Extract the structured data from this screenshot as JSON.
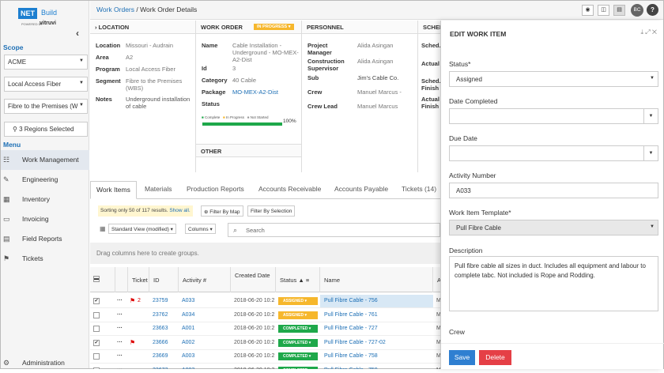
{
  "logo": {
    "net": "NET",
    "build": "Build",
    "powered": "POWERED BY",
    "brand": "vitruvi"
  },
  "sidebar": {
    "scope_heading": "Scope",
    "selects": [
      "ACME",
      "Local Access Fiber",
      "Fibre to the Premises (W"
    ],
    "regions": "3 Regions Selected",
    "menu_heading": "Menu",
    "items": [
      {
        "label": "Work Management",
        "icon": "org-chart-icon"
      },
      {
        "label": "Engineering",
        "icon": "ruler-icon"
      },
      {
        "label": "Inventory",
        "icon": "boxes-icon"
      },
      {
        "label": "Invoicing",
        "icon": "money-icon"
      },
      {
        "label": "Field Reports",
        "icon": "report-icon"
      },
      {
        "label": "Tickets",
        "icon": "flag-icon"
      },
      {
        "label": "Administration",
        "icon": "gear-icon"
      }
    ]
  },
  "breadcrumb": {
    "parent": "Work Orders",
    "sep": "/",
    "current": "Work Order Details"
  },
  "topbar": {
    "avatar": "BC",
    "help": "?"
  },
  "location": {
    "heading": "LOCATION",
    "fields": [
      {
        "label": "Location",
        "value": "Missouri - Audrain"
      },
      {
        "label": "Area",
        "value": "A2"
      },
      {
        "label": "Program",
        "value": "Local Access Fiber"
      },
      {
        "label": "Segment",
        "value": "Fibre to the Premises (WBS)"
      },
      {
        "label": "Notes",
        "value": "Underground installation of cable"
      }
    ]
  },
  "work_order": {
    "heading": "WORK ORDER",
    "status": "IN PROGRESS",
    "fields": [
      {
        "label": "Name",
        "value": "Cable Installation - Underground - MO-MEX-A2-Dist"
      },
      {
        "label": "Id",
        "value": "3"
      },
      {
        "label": "Category",
        "value": "40 Cable"
      },
      {
        "label": "Package",
        "value": "MO-MEX-A2-Dist"
      },
      {
        "label": "Status",
        "value": ""
      }
    ],
    "legend": [
      "Complete",
      "In Progress",
      "Not Started"
    ],
    "progress": "100%",
    "other_heading": "OTHER"
  },
  "personnel": {
    "heading": "PERSONNEL",
    "fields": [
      {
        "label": "Project Manager",
        "value": "Alida Asingan"
      },
      {
        "label": "Construction Supervisor",
        "value": "Alida Asingan"
      },
      {
        "label": "Sub",
        "value": "Jim's Cable Co."
      },
      {
        "label": "Crew",
        "value": "Manuel Marcus -"
      },
      {
        "label": "Crew Lead",
        "value": "Manuel Marcus"
      }
    ]
  },
  "schedule": {
    "heading": "SCHEDU",
    "fields": [
      "Sched.",
      "Actual",
      "Sched. Finish",
      "Actual Finish"
    ]
  },
  "tabs": [
    "Work Items",
    "Materials",
    "Production Reports",
    "Accounts Receivable",
    "Accounts Payable",
    "Tickets (14)"
  ],
  "toolbar": {
    "sort_note": "Sorting only 50 of 117 results.",
    "show_all": "Show all.",
    "filter_map": "Filter By Map",
    "filter_sel": "Filter By Selection",
    "view": "Standard View (modified)",
    "columns": "Columns",
    "search_placeholder": "Search",
    "group_hint": "Drag columns here to create groups."
  },
  "grid": {
    "headers": [
      "Ticket",
      "ID",
      "Activity #",
      "Created Date",
      "Status",
      "Name",
      "A"
    ],
    "rows": [
      {
        "checked": true,
        "flag": true,
        "ticket": "2",
        "id": "23759",
        "activity": "A033",
        "date": "2018-06-20 10:2",
        "status": "ASSIGNED",
        "name": "Pull Fibre Cable - 756",
        "a": "M"
      },
      {
        "checked": false,
        "flag": false,
        "ticket": "",
        "id": "23762",
        "activity": "A034",
        "date": "2018-06-20 10:2",
        "status": "ASSIGNED",
        "name": "Pull Fibre Cable - 761",
        "a": "M"
      },
      {
        "checked": false,
        "flag": false,
        "ticket": "",
        "id": "23663",
        "activity": "A001",
        "date": "2018-06-20 10:2",
        "status": "COMPLETED",
        "name": "Pull Fibre Cable - 727",
        "a": "M"
      },
      {
        "checked": true,
        "flag": true,
        "ticket": "",
        "id": "23666",
        "activity": "A002",
        "date": "2018-06-20 10:2",
        "status": "COMPLETED",
        "name": "Pull Fibre Cable - 727-02",
        "a": "M"
      },
      {
        "checked": false,
        "flag": false,
        "ticket": "",
        "id": "23669",
        "activity": "A003",
        "date": "2018-06-20 10:2",
        "status": "COMPLETED",
        "name": "Pull Fibre Cable - 758",
        "a": "M"
      },
      {
        "checked": false,
        "flag": false,
        "ticket": "",
        "id": "23672",
        "activity": "A003",
        "date": "2018-06-20 10:2",
        "status": "COMPLETED",
        "name": "Pull Fibre Cable - 759",
        "a": "M"
      }
    ]
  },
  "edit": {
    "title": "EDIT WORK ITEM",
    "status_label": "Status*",
    "status_value": "Assigned",
    "date_completed_label": "Date Completed",
    "due_date_label": "Due Date",
    "activity_label": "Activity Number",
    "activity_value": "A033",
    "template_label": "Work Item Template*",
    "template_value": "Pull Fibre Cable",
    "description_label": "Description",
    "description_value": "Pull fibre cable all sizes in duct. Includes all equipment and labour to complete tabc. Not included is Rope and Rodding.",
    "crew_label": "Crew",
    "save": "Save",
    "delete": "Delete"
  },
  "colors": {
    "accent": "#1d6fb5",
    "in_progress": "#f6b72c",
    "completed": "#1ea84a",
    "delete": "#e53f46",
    "save": "#2f7fd1"
  }
}
